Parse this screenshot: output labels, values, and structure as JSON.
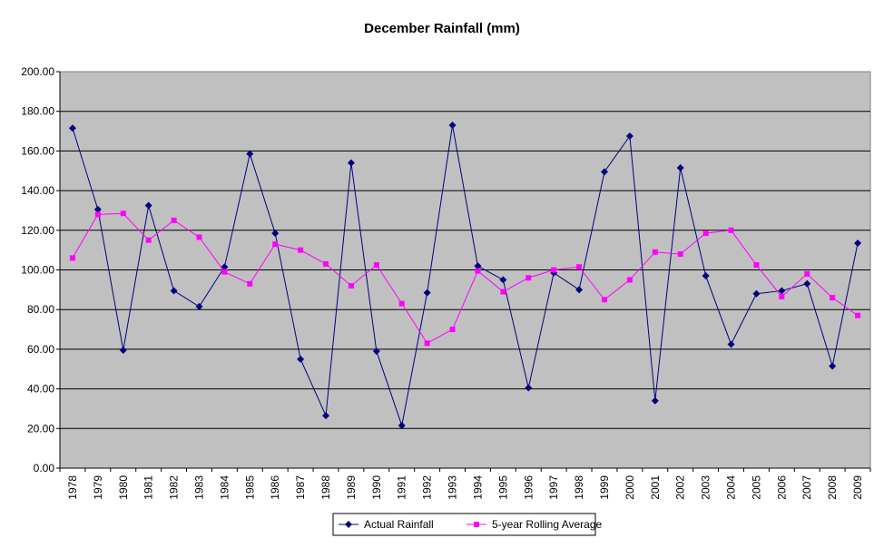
{
  "chart_data": {
    "type": "line",
    "title": "December Rainfall (mm)",
    "xlabel": "",
    "ylabel": "",
    "categories": [
      "1978",
      "1979",
      "1980",
      "1981",
      "1982",
      "1983",
      "1984",
      "1985",
      "1986",
      "1987",
      "1988",
      "1989",
      "1990",
      "1991",
      "1992",
      "1993",
      "1994",
      "1995",
      "1996",
      "1997",
      "1998",
      "1999",
      "2000",
      "2001",
      "2002",
      "2003",
      "2004",
      "2005",
      "2006",
      "2007",
      "2008",
      "2009"
    ],
    "ylim": [
      0,
      200
    ],
    "yticks": [
      "0.00",
      "20.00",
      "40.00",
      "60.00",
      "80.00",
      "100.00",
      "120.00",
      "140.00",
      "160.00",
      "180.00",
      "200.00"
    ],
    "grid": true,
    "plot_background": "#c0c0c0",
    "legend_position": "bottom",
    "series": [
      {
        "name": "Actual Rainfall",
        "color": "#000080",
        "marker": "diamond",
        "values": [
          171.5,
          130.5,
          59.5,
          132.5,
          89.5,
          81.5,
          101.5,
          158.5,
          118.5,
          55,
          26.5,
          154,
          59,
          21.5,
          88.5,
          173,
          102,
          95,
          40.5,
          98.5,
          90,
          149.5,
          167.5,
          34,
          151.5,
          97,
          62.5,
          88,
          89.5,
          93,
          51.5,
          113.5
        ]
      },
      {
        "name": "5-year Rolling Average",
        "color": "#ff00ff",
        "marker": "square",
        "values": [
          106,
          128,
          128.5,
          115,
          125,
          116.5,
          99,
          93,
          113,
          110,
          103,
          92,
          102.5,
          83,
          63,
          70,
          99.5,
          89,
          96,
          100,
          101.5,
          85,
          95,
          109,
          108,
          118.5,
          120,
          102.5,
          86.5,
          98,
          86,
          77
        ]
      }
    ]
  }
}
